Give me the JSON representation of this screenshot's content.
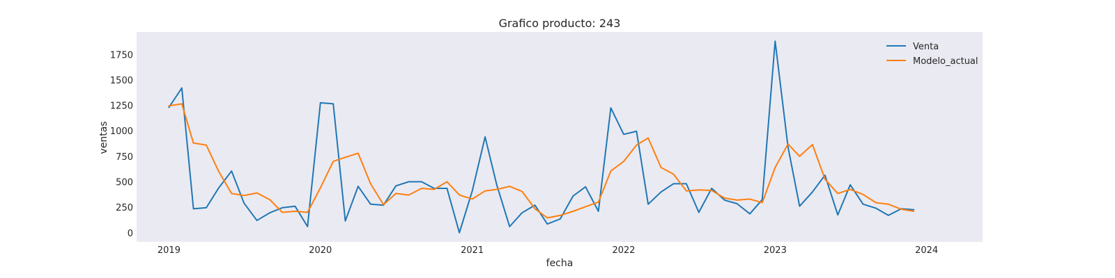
{
  "chart_data": {
    "type": "line",
    "title": "Grafico producto: 243",
    "xlabel": "fecha",
    "ylabel": "ventas",
    "ylim": [
      -90,
      1970
    ],
    "xlim": [
      "2018-10-15",
      "2024-05-15"
    ],
    "grid": false,
    "legend_position": "top-right",
    "x_ticks": [
      "2019",
      "2020",
      "2021",
      "2022",
      "2023",
      "2024"
    ],
    "y_ticks": [
      0,
      250,
      500,
      750,
      1000,
      1250,
      1500,
      1750
    ],
    "x": [
      "2019-01",
      "2019-02",
      "2019-03",
      "2019-04",
      "2019-05",
      "2019-06",
      "2019-07",
      "2019-08",
      "2019-09",
      "2019-10",
      "2019-11",
      "2019-12",
      "2020-01",
      "2020-02",
      "2020-03",
      "2020-04",
      "2020-05",
      "2020-06",
      "2020-07",
      "2020-08",
      "2020-09",
      "2020-10",
      "2020-11",
      "2020-12",
      "2021-01",
      "2021-02",
      "2021-03",
      "2021-04",
      "2021-05",
      "2021-06",
      "2021-07",
      "2021-08",
      "2021-09",
      "2021-10",
      "2021-11",
      "2021-12",
      "2022-01",
      "2022-02",
      "2022-03",
      "2022-04",
      "2022-05",
      "2022-06",
      "2022-07",
      "2022-08",
      "2022-09",
      "2022-10",
      "2022-11",
      "2022-12",
      "2023-01",
      "2023-02",
      "2023-03",
      "2023-04",
      "2023-05",
      "2023-06",
      "2023-07",
      "2023-08",
      "2023-09",
      "2023-10",
      "2023-11",
      "2023-12"
    ],
    "series": [
      {
        "name": "Venta",
        "color": "#1f77b4",
        "values": [
          1230,
          1420,
          235,
          245,
          440,
          605,
          290,
          120,
          195,
          245,
          260,
          60,
          1275,
          1265,
          115,
          455,
          280,
          270,
          460,
          500,
          500,
          435,
          435,
          0,
          410,
          940,
          470,
          60,
          195,
          270,
          85,
          135,
          360,
          450,
          210,
          1225,
          965,
          995,
          280,
          400,
          480,
          480,
          200,
          435,
          320,
          285,
          185,
          325,
          1880,
          840,
          260,
          400,
          565,
          175,
          470,
          280,
          240,
          170,
          235,
          225
        ]
      },
      {
        "name": "Modelo_actual",
        "color": "#ff7f0e",
        "values": [
          1245,
          1265,
          880,
          860,
          600,
          385,
          365,
          390,
          325,
          200,
          210,
          200,
          440,
          700,
          740,
          780,
          480,
          275,
          385,
          370,
          435,
          425,
          500,
          370,
          330,
          410,
          425,
          455,
          405,
          235,
          145,
          170,
          210,
          255,
          300,
          605,
          700,
          860,
          930,
          640,
          575,
          410,
          420,
          415,
          340,
          320,
          330,
          295,
          640,
          870,
          750,
          865,
          525,
          385,
          425,
          375,
          295,
          280,
          230,
          210
        ]
      }
    ]
  }
}
